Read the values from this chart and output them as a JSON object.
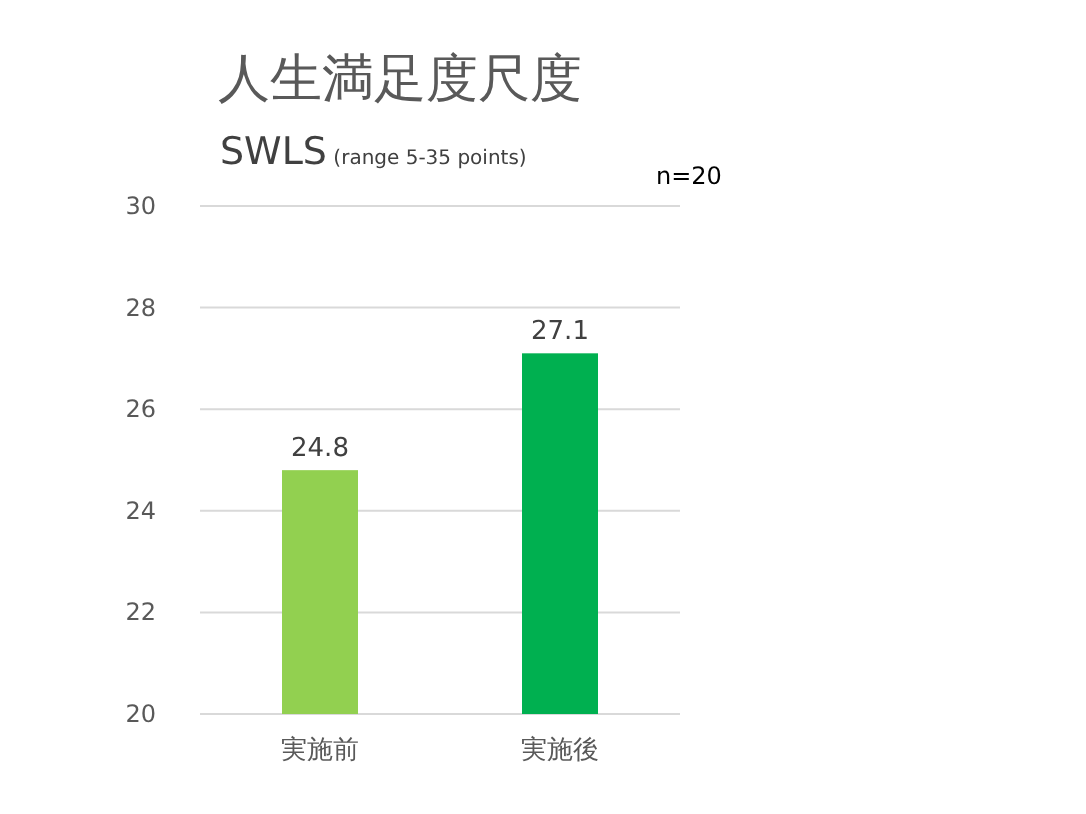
{
  "chart_data": {
    "type": "bar",
    "title": "人生満足度尺度",
    "subtitle": "SWLS (range 5-35 points)",
    "categories": [
      "実施前",
      "実施後"
    ],
    "values": [
      24.8,
      27.1
    ],
    "colors": [
      "#92d050",
      "#00b050"
    ],
    "ylim": [
      20,
      30
    ],
    "yticks": [
      20,
      22,
      24,
      26,
      28,
      30
    ],
    "grid": "y",
    "data_labels": true,
    "annotations": [
      "n=20"
    ]
  }
}
